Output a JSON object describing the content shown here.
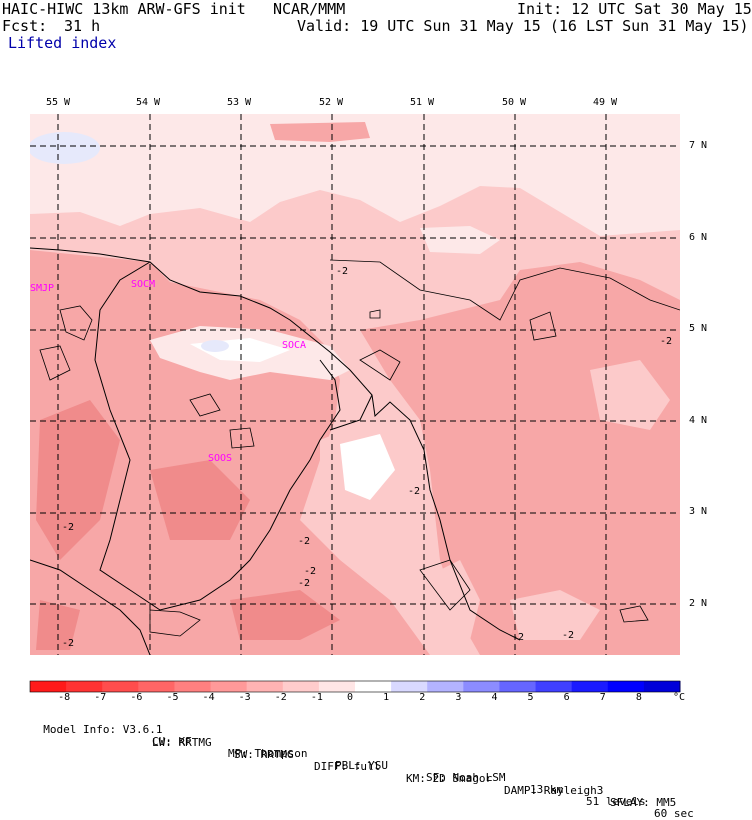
{
  "header": {
    "model_title": "HAIC-HIWC 13km ARW-GFS init",
    "org": "NCAR/MMM",
    "init": "Init: 12 UTC Sat 30 May 15",
    "fcst_label": "Fcst:",
    "fcst_value": "31 h",
    "valid": "Valid: 19 UTC Sun 31 May 15 (16 LST Sun 31 May 15)",
    "field_name": "Lifted index"
  },
  "map": {
    "lon_labels": [
      "55 W",
      "54 W",
      "53 W",
      "52 W",
      "51 W",
      "50 W",
      "49 W"
    ],
    "lat_labels": [
      "7 N",
      "6 N",
      "5 N",
      "4 N",
      "3 N",
      "2 N"
    ],
    "stations": [
      "SMJP",
      "SOCM",
      "SOCA",
      "SOOS"
    ],
    "contour_labels": [
      "-2",
      "-2",
      "-2",
      "-2",
      "-2",
      "-2",
      "-2",
      "-2",
      "-2",
      "-2"
    ]
  },
  "colorbar": {
    "tick_labels": [
      "-8",
      "-7",
      "-6",
      "-5",
      "-4",
      "-3",
      "-2",
      "-1",
      "0",
      "1",
      "2",
      "3",
      "4",
      "5",
      "6",
      "7",
      "8"
    ],
    "unit": "°C",
    "colors": [
      "#ff1a1a",
      "#ff3333",
      "#ff4d4d",
      "#ff6666",
      "#ff8080",
      "#ff9999",
      "#ffb3b3",
      "#ffcccc",
      "#ffe6e6",
      "#ffffff",
      "#d9d9ff",
      "#b3b3ff",
      "#8c8cff",
      "#6666ff",
      "#4040ff",
      "#1a1aff",
      "#0000ff",
      "#0000d9"
    ]
  },
  "model_info": {
    "line1": [
      "Model Info: V3.6.1",
      "CU: KF",
      "MP: Thompson",
      "PBL: YSU",
      "SF: Noah LSM",
      "13 km",
      "51 levels",
      "60 sec"
    ],
    "line2": [
      "LW: RRTMG",
      "SW: RRTMG",
      "DIFF: full",
      "KM: 2D Smagor",
      "DAMP: Rayleigh3",
      "SFLAY: MM5"
    ]
  },
  "field_colors": {
    "very_light": "#fde8e8",
    "light": "#fccaca",
    "medium": "#f7a7a7",
    "strong": "#f08b8b",
    "white_patch": "#ffffff",
    "blue_patch": "#e6e9fb",
    "station_color": "#ff00ff"
  }
}
